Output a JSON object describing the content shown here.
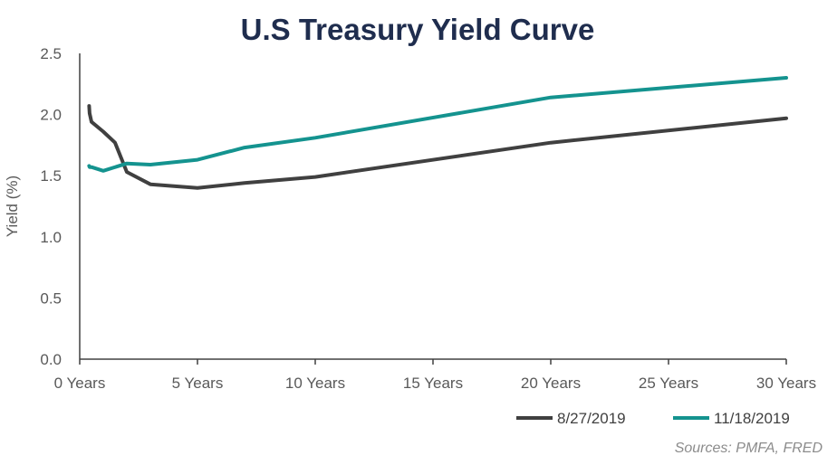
{
  "chart_data": {
    "type": "line",
    "title": "U.S Treasury Yield Curve",
    "xlabel": "",
    "ylabel": "Yield (%)",
    "source": "Sources: PMFA, FRED",
    "x_tick_labels": [
      "0 Years",
      "5 Years",
      "10 Years",
      "15 Years",
      "20 Years",
      "25 Years",
      "30 Years"
    ],
    "x_ticks": [
      0,
      5,
      10,
      15,
      20,
      25,
      30
    ],
    "xlim": [
      0,
      30
    ],
    "y_tick_labels": [
      "0.0",
      "0.5",
      "1.0",
      "1.5",
      "2.0",
      "2.5"
    ],
    "y_ticks": [
      0,
      0.5,
      1.0,
      1.5,
      2.0,
      2.5
    ],
    "ylim": [
      0,
      2.5
    ],
    "grid": false,
    "legend_position": "bottom-right",
    "series": [
      {
        "name": "8/27/2019",
        "color": "#404040",
        "x": [
          0.4,
          0.42,
          0.5,
          1.0,
          1.5,
          2.0,
          3.0,
          5.0,
          7.0,
          10.0,
          20.0,
          30.0
        ],
        "y": [
          2.07,
          2.01,
          1.94,
          1.86,
          1.77,
          1.53,
          1.43,
          1.4,
          1.44,
          1.49,
          1.77,
          1.97
        ]
      },
      {
        "name": "11/18/2019",
        "color": "#14938f",
        "x": [
          0.4,
          0.42,
          0.5,
          1.0,
          2.0,
          3.0,
          5.0,
          7.0,
          10.0,
          20.0,
          30.0
        ],
        "y": [
          1.58,
          1.57,
          1.57,
          1.54,
          1.6,
          1.59,
          1.63,
          1.73,
          1.81,
          2.14,
          2.3
        ]
      }
    ]
  }
}
